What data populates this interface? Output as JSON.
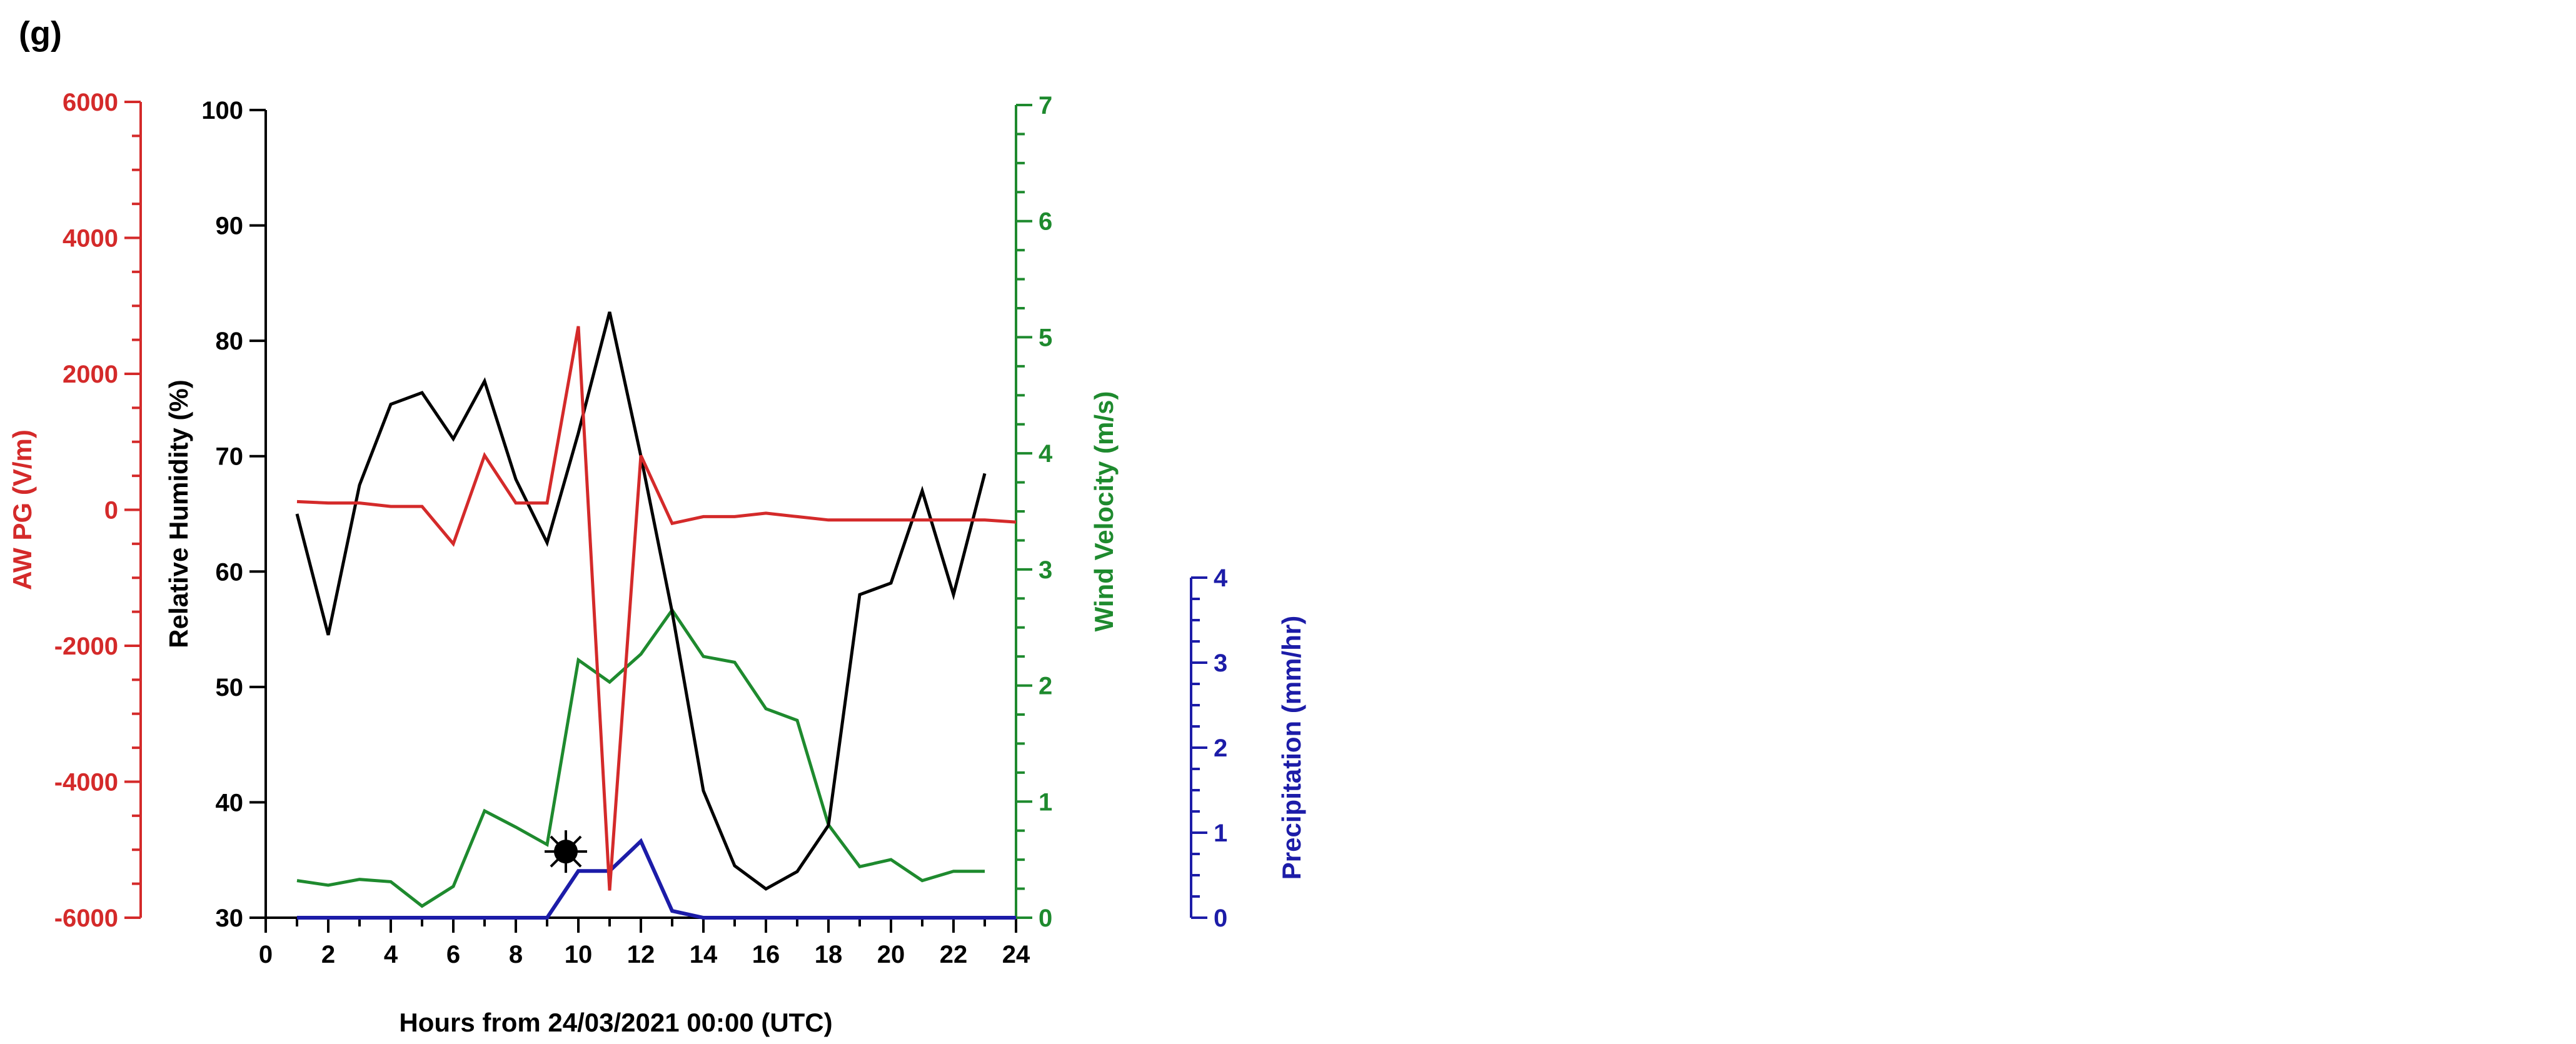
{
  "panel_label": "(g)",
  "colors": {
    "pg": "#d42a2a",
    "rh": "#000000",
    "wind": "#1e8a2e",
    "precip": "#1c1ca8",
    "axis": "#000000"
  },
  "chart_data": {
    "type": "line",
    "xlabel": "Hours from 24/03/2021 00:00 (UTC)",
    "xlim": [
      0,
      24
    ],
    "x_ticks": [
      "0",
      "2",
      "4",
      "6",
      "8",
      "10",
      "12",
      "14",
      "16",
      "18",
      "20",
      "22",
      "24"
    ],
    "axes": {
      "pg": {
        "label": "AW PG (V/m)",
        "ylim": [
          -6000,
          6000
        ],
        "ticks": [
          "6000",
          "4000",
          "2000",
          "0",
          "-2000",
          "-4000",
          "-6000"
        ]
      },
      "rh": {
        "label": "Relative Humidity (%)",
        "ylim": [
          30,
          100
        ],
        "ticks": [
          "100",
          "90",
          "80",
          "70",
          "60",
          "50",
          "40",
          "30"
        ]
      },
      "wind": {
        "label": "Wind Velocity (m/s)",
        "ylim": [
          0,
          7
        ],
        "ticks": [
          "7",
          "6",
          "5",
          "4",
          "3",
          "2",
          "1",
          "0"
        ]
      },
      "precip": {
        "label": "Precipitation (mm/hr)",
        "ylim": [
          0,
          4
        ],
        "ticks": [
          "4",
          "3",
          "2",
          "1",
          "0"
        ]
      }
    },
    "series": [
      {
        "axis": "pg",
        "x": [
          1,
          2,
          3,
          4,
          5,
          6,
          7,
          8,
          9,
          10,
          11,
          12,
          13,
          14,
          15,
          16,
          17,
          18,
          19,
          20,
          21,
          22,
          23,
          24
        ],
        "y": [
          120,
          100,
          100,
          50,
          50,
          -500,
          800,
          100,
          100,
          2700,
          -5600,
          800,
          -200,
          -100,
          -100,
          -50,
          -100,
          -150,
          -150,
          -150,
          -150,
          -150,
          -150,
          -180
        ]
      },
      {
        "axis": "rh",
        "x": [
          1,
          2,
          3,
          4,
          5,
          6,
          7,
          8,
          9,
          10,
          11,
          12,
          13,
          14,
          15,
          16,
          17,
          18,
          19,
          20,
          21,
          22,
          23
        ],
        "y": [
          65,
          54.5,
          67.5,
          74.5,
          75.5,
          71.5,
          76.5,
          68,
          62.5,
          72,
          82.5,
          70,
          56.5,
          41,
          34.5,
          32.5,
          34,
          38,
          58,
          59,
          67,
          58,
          68.5
        ]
      },
      {
        "axis": "wind",
        "x": [
          1,
          2,
          3,
          4,
          5,
          6,
          7,
          8,
          9,
          10,
          11,
          12,
          13,
          14,
          15,
          16,
          17,
          18,
          19,
          20,
          21,
          22,
          23
        ],
        "y": [
          0.32,
          0.28,
          0.33,
          0.31,
          0.1,
          0.27,
          0.92,
          0.78,
          0.63,
          2.22,
          2.03,
          2.27,
          2.65,
          2.25,
          2.2,
          1.8,
          1.7,
          0.8,
          0.44,
          0.5,
          0.32,
          0.4,
          0.4
        ]
      },
      {
        "axis": "precip",
        "x": [
          1,
          2,
          3,
          4,
          5,
          6,
          7,
          8,
          9,
          10,
          11,
          12,
          13,
          14,
          15,
          16,
          17,
          18,
          19,
          20,
          21,
          22,
          23,
          24
        ],
        "y": [
          0,
          0,
          0,
          0,
          0,
          0,
          0,
          0,
          0,
          0.55,
          0.55,
          0.9,
          0.08,
          0,
          0,
          0,
          0,
          0,
          0,
          0,
          0,
          0,
          0,
          0
        ]
      }
    ],
    "marker": {
      "symbol": "star-burst",
      "x": 9.6,
      "axis": "wind",
      "y": 0.57
    }
  }
}
